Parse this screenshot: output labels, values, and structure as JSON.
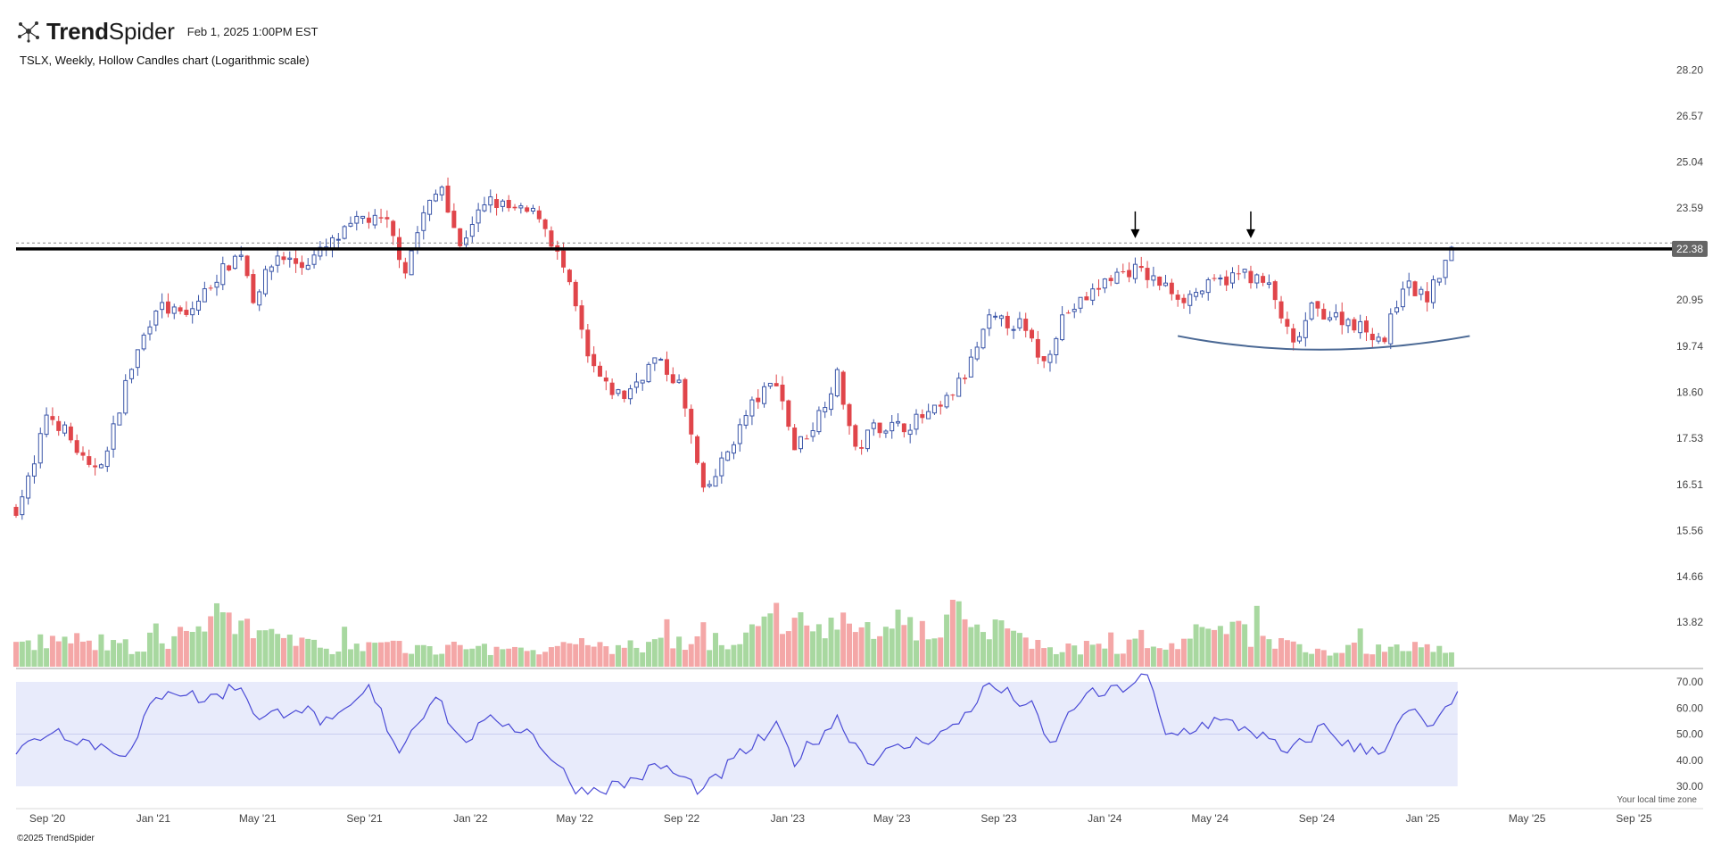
{
  "header": {
    "brand_bold": "Trend",
    "brand_regular": "Spider",
    "logo_icon": "spider-network-icon",
    "date": "Feb 1, 2025 1:00PM EST"
  },
  "chart_title": "TSLX, Weekly, Hollow Candles chart (Logarithmic scale)",
  "footer": {
    "copyright": "©2025 TrendSpider",
    "timezone_note": "Your local time zone"
  },
  "colors": {
    "up": "#3a55a8",
    "down": "#e0454a",
    "volume_up": "#a8d8a0",
    "volume_down": "#f4a7a7",
    "rsi_line": "#4a4ad6",
    "rsi_band": "#e8ebfb",
    "resistance": "#000000",
    "curve": "#4a6894",
    "price_badge": "#666666"
  },
  "chart_data": {
    "type": "candlestick",
    "ticker": "TSLX",
    "interval": "Weekly",
    "style": "Hollow Candles",
    "y_scale": "log",
    "ylim": [
      13.4,
      28.8
    ],
    "y_ticks": [
      "28.20",
      "26.57",
      "25.04",
      "23.59",
      "22.38",
      "20.95",
      "19.74",
      "18.60",
      "17.53",
      "16.51",
      "15.56",
      "14.66",
      "13.82"
    ],
    "last_price": "22.38",
    "x_ticks": [
      "Sep '20",
      "Jan '21",
      "May '21",
      "Sep '21",
      "Jan '22",
      "May '22",
      "Sep '22",
      "Jan '23",
      "May '23",
      "Sep '23",
      "Jan '24",
      "May '24",
      "Sep '24",
      "Jan '25",
      "May '25",
      "Sep '25"
    ],
    "x_range": [
      "2020-07-27",
      "2025-10-27"
    ],
    "price_keypoints": [
      [
        "2020-07-27",
        16.0
      ],
      [
        "2020-08-17",
        16.9
      ],
      [
        "2020-08-31",
        18.1
      ],
      [
        "2020-09-21",
        17.7
      ],
      [
        "2020-10-19",
        16.8
      ],
      [
        "2020-11-09",
        17.2
      ],
      [
        "2020-11-30",
        18.8
      ],
      [
        "2020-12-21",
        20.0
      ],
      [
        "2021-01-04",
        20.8
      ],
      [
        "2021-02-08",
        20.5
      ],
      [
        "2021-03-15",
        21.6
      ],
      [
        "2021-04-12",
        22.3
      ],
      [
        "2021-04-26",
        21.0
      ],
      [
        "2021-05-24",
        22.2
      ],
      [
        "2021-06-21",
        21.9
      ],
      [
        "2021-07-19",
        22.4
      ],
      [
        "2021-08-30",
        23.3
      ],
      [
        "2021-09-27",
        23.1
      ],
      [
        "2021-10-18",
        21.8
      ],
      [
        "2021-11-08",
        23.4
      ],
      [
        "2021-11-29",
        24.3
      ],
      [
        "2021-12-20",
        22.4
      ],
      [
        "2022-01-03",
        23.2
      ],
      [
        "2022-01-24",
        23.8
      ],
      [
        "2022-02-21",
        23.5
      ],
      [
        "2022-03-21",
        23.4
      ],
      [
        "2022-04-18",
        21.8
      ],
      [
        "2022-05-02",
        20.7
      ],
      [
        "2022-05-16",
        19.4
      ],
      [
        "2022-06-06",
        18.7
      ],
      [
        "2022-06-27",
        18.5
      ],
      [
        "2022-08-01",
        19.4
      ],
      [
        "2022-08-29",
        18.8
      ],
      [
        "2022-09-26",
        16.3
      ],
      [
        "2022-10-10",
        16.7
      ],
      [
        "2022-11-21",
        18.3
      ],
      [
        "2022-12-19",
        18.9
      ],
      [
        "2023-01-09",
        17.3
      ],
      [
        "2023-01-30",
        17.8
      ],
      [
        "2023-02-27",
        19.0
      ],
      [
        "2023-03-20",
        17.2
      ],
      [
        "2023-04-10",
        17.8
      ],
      [
        "2023-05-15",
        17.8
      ],
      [
        "2023-06-26",
        18.2
      ],
      [
        "2023-07-24",
        19.0
      ],
      [
        "2023-08-21",
        20.4
      ],
      [
        "2023-09-25",
        20.3
      ],
      [
        "2023-10-23",
        19.3
      ],
      [
        "2023-11-13",
        20.5
      ],
      [
        "2023-12-11",
        21.0
      ],
      [
        "2024-01-08",
        21.6
      ],
      [
        "2024-02-05",
        21.8
      ],
      [
        "2024-03-04",
        21.4
      ],
      [
        "2024-04-01",
        21.0
      ],
      [
        "2024-05-06",
        21.4
      ],
      [
        "2024-06-10",
        21.7
      ],
      [
        "2024-07-08",
        21.3
      ],
      [
        "2024-08-05",
        19.7
      ],
      [
        "2024-08-26",
        20.7
      ],
      [
        "2024-10-07",
        20.4
      ],
      [
        "2024-11-18",
        19.9
      ],
      [
        "2024-12-09",
        21.4
      ],
      [
        "2025-01-06",
        21.0
      ],
      [
        "2025-02-03",
        22.3
      ]
    ],
    "volume_keypoints": [
      [
        0,
        0.35
      ],
      [
        0.03,
        0.45
      ],
      [
        0.1,
        0.3
      ],
      [
        0.14,
        0.8
      ],
      [
        0.2,
        0.35
      ],
      [
        0.3,
        0.3
      ],
      [
        0.38,
        0.3
      ],
      [
        0.45,
        0.35
      ],
      [
        0.5,
        0.45
      ],
      [
        0.54,
        0.9
      ],
      [
        0.6,
        0.5
      ],
      [
        0.66,
        0.85
      ],
      [
        0.72,
        0.3
      ],
      [
        0.8,
        0.35
      ],
      [
        0.84,
        0.65
      ],
      [
        0.9,
        0.3
      ],
      [
        1.0,
        0.3
      ]
    ],
    "rsi": {
      "ylim": [
        28,
        72
      ],
      "y_ticks": [
        "70.00",
        "60.00",
        "50.00",
        "40.00",
        "30.00"
      ],
      "band": [
        30,
        70
      ],
      "midline": 50,
      "keypoints": [
        [
          "2020-07-27",
          43
        ],
        [
          "2020-09-07",
          52
        ],
        [
          "2020-10-26",
          46
        ],
        [
          "2020-12-07",
          43
        ],
        [
          "2020-12-28",
          60
        ],
        [
          "2021-01-18",
          68
        ],
        [
          "2021-03-01",
          63
        ],
        [
          "2021-04-12",
          69
        ],
        [
          "2021-05-03",
          55
        ],
        [
          "2021-06-14",
          61
        ],
        [
          "2021-07-26",
          53
        ],
        [
          "2021-09-06",
          67
        ],
        [
          "2021-10-11",
          44
        ],
        [
          "2021-11-22",
          66
        ],
        [
          "2021-12-20",
          47
        ],
        [
          "2022-01-31",
          56
        ],
        [
          "2022-03-14",
          50
        ],
        [
          "2022-04-25",
          32
        ],
        [
          "2022-05-09",
          28
        ],
        [
          "2022-06-27",
          31
        ],
        [
          "2022-08-08",
          38
        ],
        [
          "2022-09-26",
          28
        ],
        [
          "2022-11-07",
          42
        ],
        [
          "2022-12-19",
          52
        ],
        [
          "2023-01-09",
          40
        ],
        [
          "2023-02-27",
          56
        ],
        [
          "2023-04-03",
          40
        ],
        [
          "2023-05-22",
          46
        ],
        [
          "2023-07-10",
          52
        ],
        [
          "2023-08-21",
          69
        ],
        [
          "2023-10-09",
          60
        ],
        [
          "2023-10-30",
          45
        ],
        [
          "2023-12-04",
          64
        ],
        [
          "2024-01-08",
          66
        ],
        [
          "2024-02-19",
          72
        ],
        [
          "2024-03-11",
          49
        ],
        [
          "2024-05-06",
          55
        ],
        [
          "2024-06-17",
          52
        ],
        [
          "2024-07-29",
          42
        ],
        [
          "2024-09-09",
          53
        ],
        [
          "2024-10-14",
          44
        ],
        [
          "2024-11-18",
          45
        ],
        [
          "2024-12-16",
          59
        ],
        [
          "2025-01-13",
          52
        ],
        [
          "2025-02-10",
          64
        ]
      ]
    },
    "annotations": {
      "resistance_level": 22.38,
      "dashed_level": 22.55,
      "arrows_at": [
        "2024-02-05",
        "2024-06-17"
      ],
      "curve_from": [
        "2024-03-25",
        20.0
      ],
      "curve_bottom": [
        "2024-09-02",
        19.65
      ],
      "curve_to": [
        "2025-02-24",
        20.0
      ]
    }
  }
}
